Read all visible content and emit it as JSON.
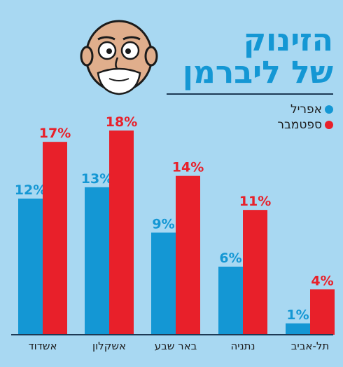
{
  "title": {
    "line1": "הזינוק",
    "line2": "של ליברמן"
  },
  "legend": [
    {
      "label": "אפריל",
      "color": "#1497d4"
    },
    {
      "label": "ספטמבר",
      "color": "#e8202a"
    }
  ],
  "chart_data": {
    "type": "bar",
    "categories": [
      "אשדוד",
      "אשקלון",
      "באר שבע",
      "נתניה",
      "תל-אביב"
    ],
    "series": [
      {
        "name": "אפריל",
        "values": [
          12,
          13,
          9,
          6,
          1
        ],
        "labels": [
          "12%",
          "13%",
          "9%",
          "6%",
          "1%"
        ],
        "color": "#1497d4"
      },
      {
        "name": "ספטמבר",
        "values": [
          17,
          18,
          14,
          11,
          4
        ],
        "labels": [
          "17%",
          "18%",
          "14%",
          "11%",
          "4%"
        ],
        "color": "#e8202a"
      }
    ],
    "ylim": [
      0,
      18
    ],
    "legend_position": "top-right",
    "grid": false
  },
  "colors": {
    "background": "#a8d8f2",
    "axis": "#1d3a55"
  }
}
